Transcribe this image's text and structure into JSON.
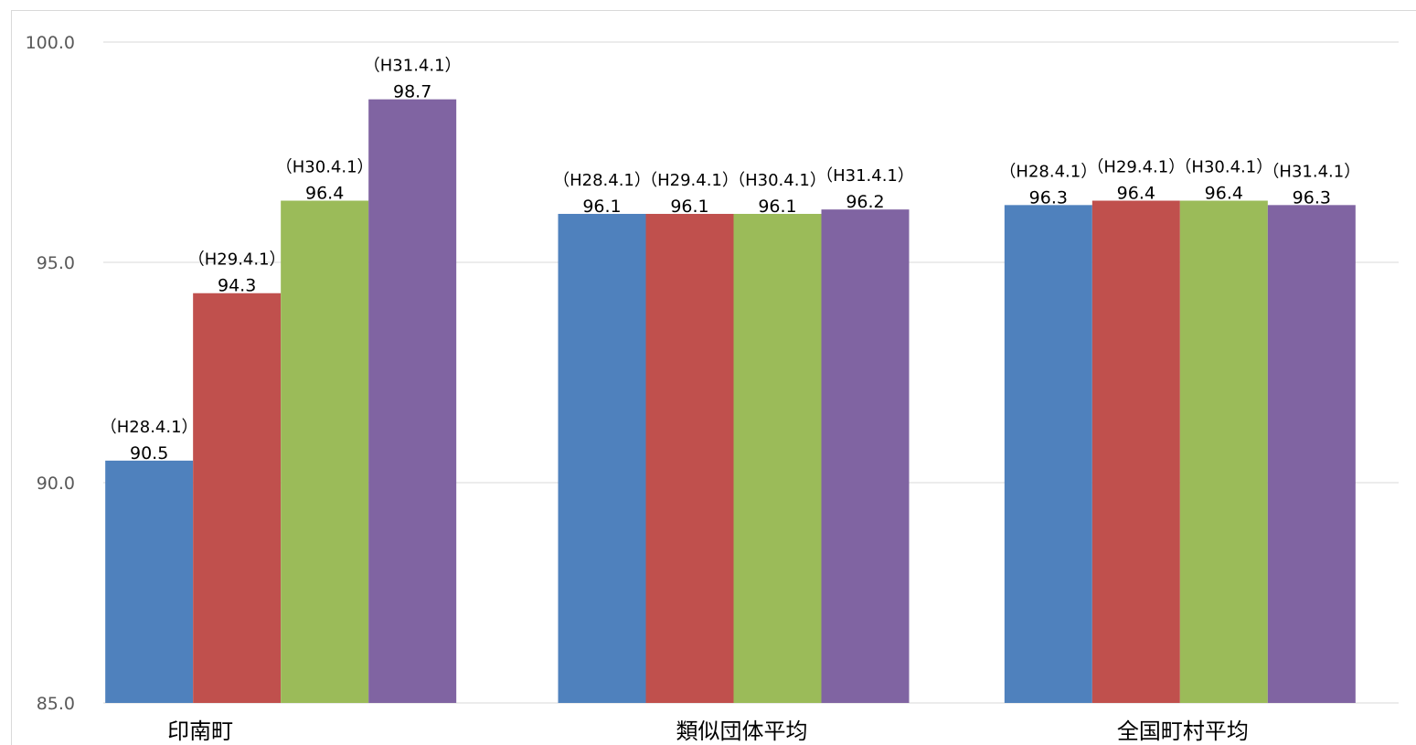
{
  "chart_data": {
    "type": "bar",
    "categories": [
      "印南町",
      "類似団体平均",
      "全国町村平均"
    ],
    "series": [
      {
        "name": "",
        "color": "#4f81bd",
        "values": [
          90.5,
          96.1,
          96.3
        ],
        "labels": [
          "（H28.4.1）",
          "（H28.4.1）",
          "（H28.4.1）"
        ]
      },
      {
        "name": "",
        "color": "#c0504d",
        "values": [
          94.3,
          96.1,
          96.4
        ],
        "labels": [
          "（H29.4.1）",
          "（H29.4.1）",
          "（H29.4.1）"
        ]
      },
      {
        "name": "",
        "color": "#9bbb59",
        "values": [
          96.4,
          96.1,
          96.4
        ],
        "labels": [
          "（H30.4.1）",
          "（H30.4.1）",
          "（H30.4.1）"
        ]
      },
      {
        "name": "",
        "color": "#8064a2",
        "values": [
          98.7,
          96.2,
          96.3
        ],
        "labels": [
          "（H31.4.1）",
          "（H31.4.1）",
          "（H31.4.1）"
        ]
      }
    ],
    "ylim": [
      85,
      100
    ],
    "yticks": [
      "85.0",
      "90.0",
      "95.0",
      "100.0"
    ],
    "grid": true,
    "gridColor": "#d9d9d9",
    "title": "",
    "xlabel": "",
    "ylabel": ""
  }
}
